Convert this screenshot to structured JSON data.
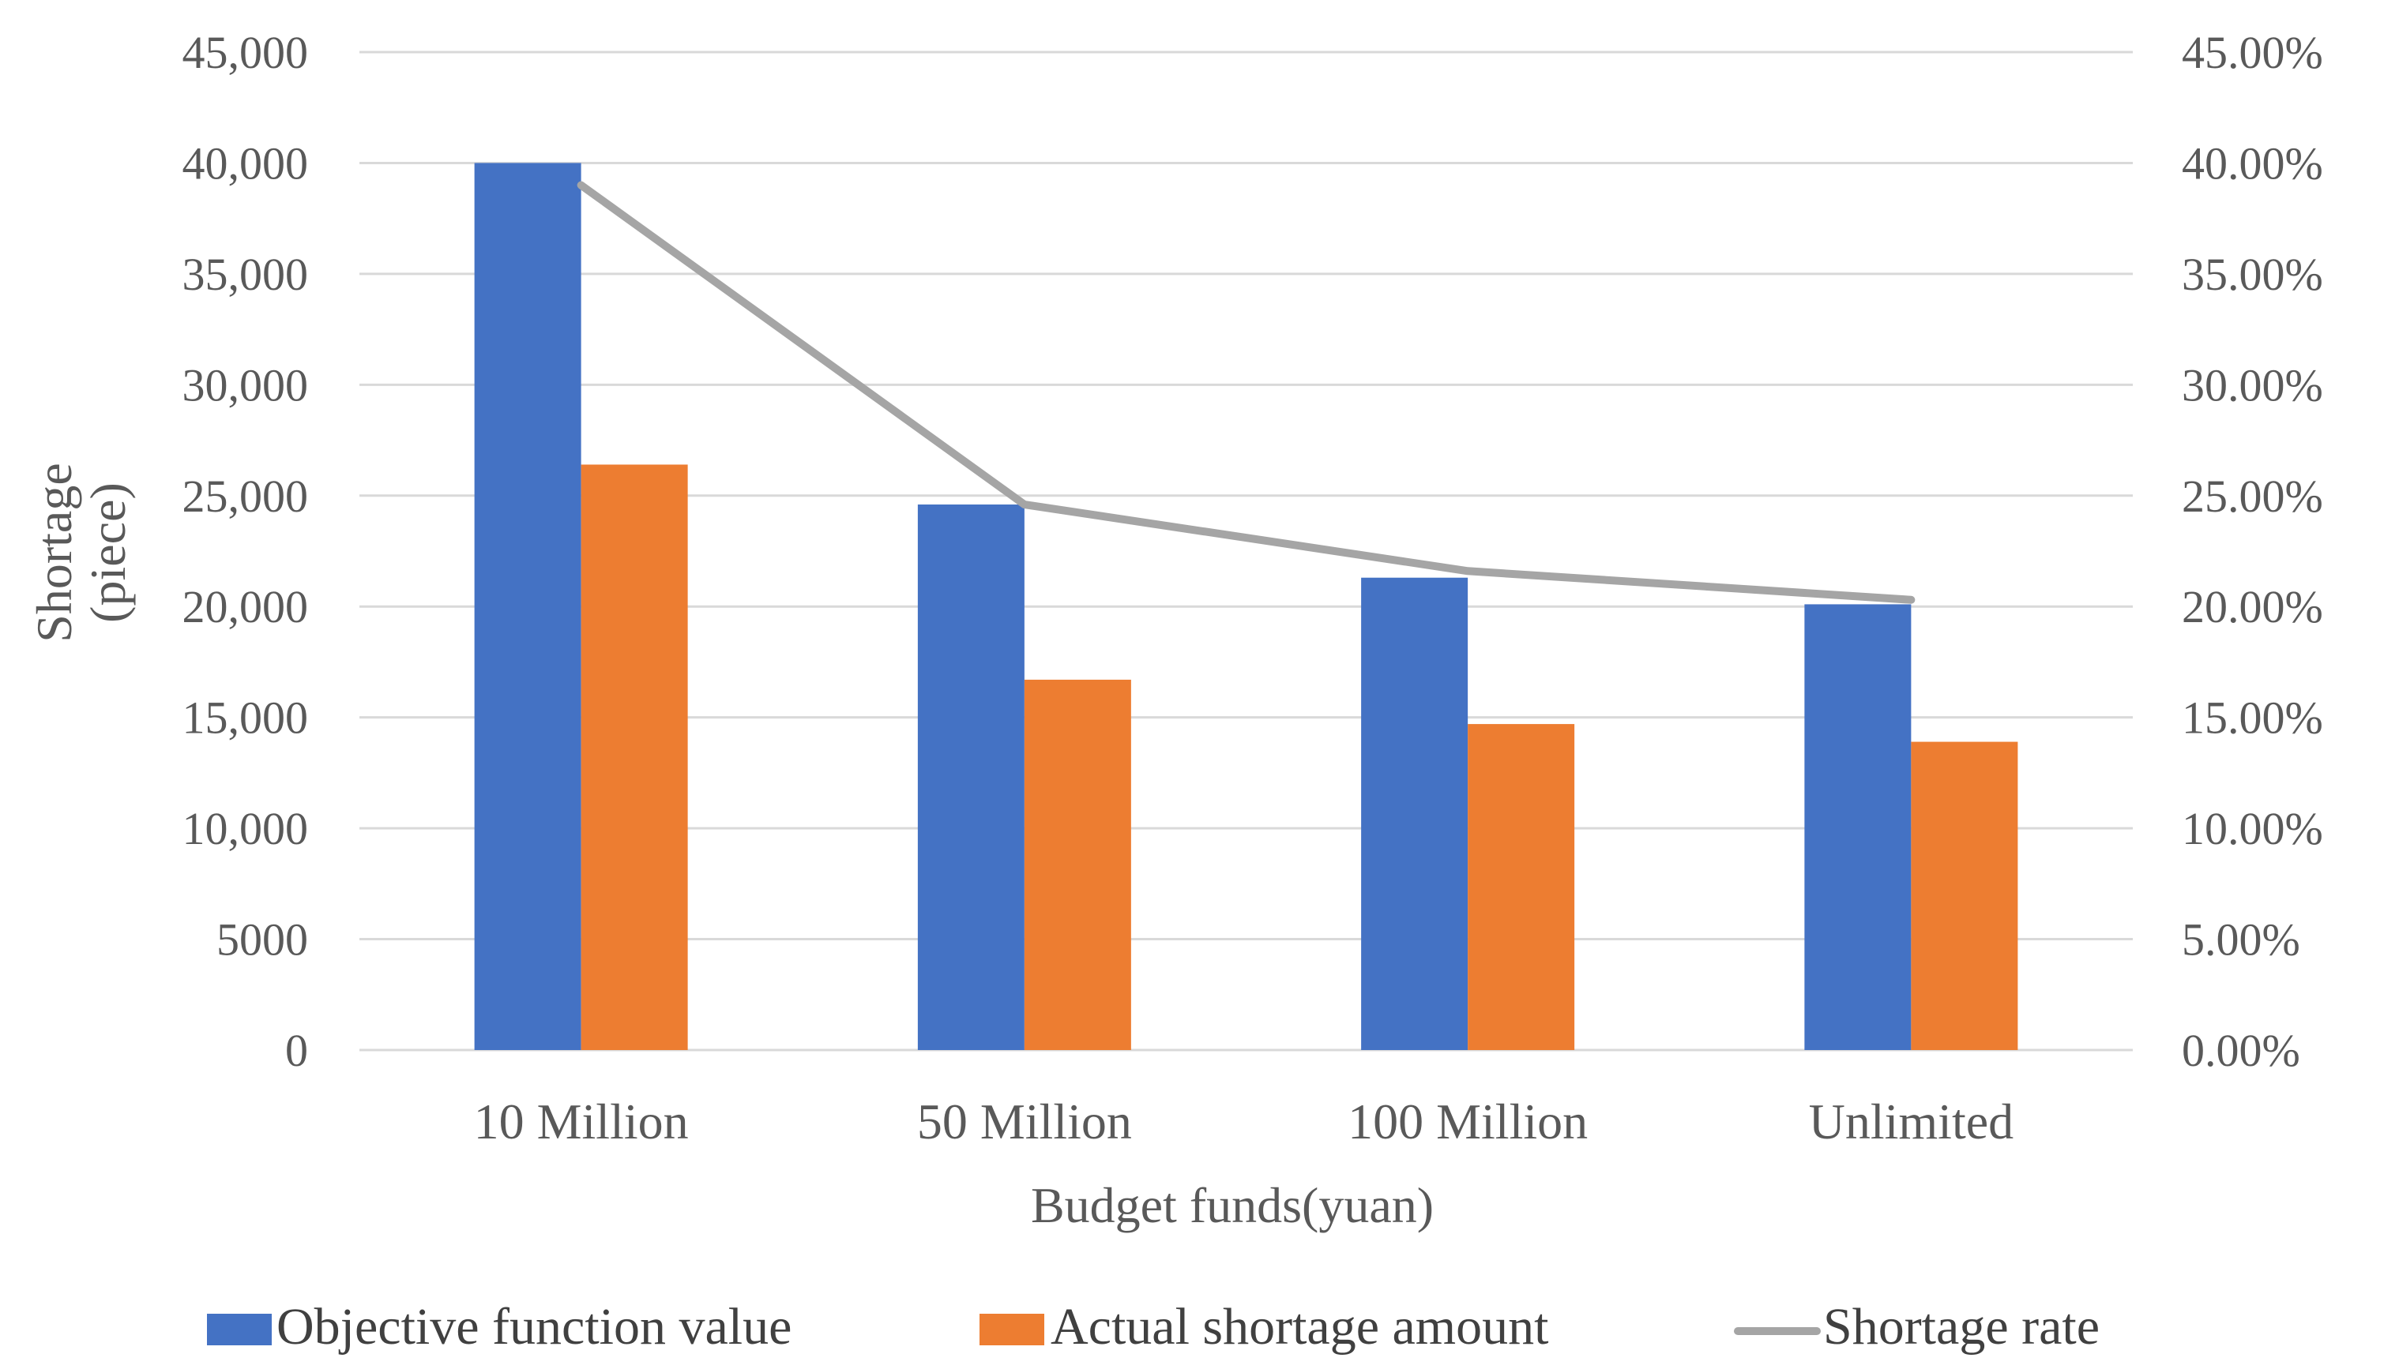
{
  "chart_data": {
    "type": "bar",
    "categories": [
      "10 Million",
      "50 Million",
      "100 Million",
      "Unlimited"
    ],
    "series": [
      {
        "name": "Objective function value",
        "kind": "bar",
        "axis": "left",
        "color": "#4472C4",
        "values": [
          40000,
          24600,
          21300,
          20100
        ]
      },
      {
        "name": "Actual shortage amount",
        "kind": "bar",
        "axis": "left",
        "color": "#ED7D31",
        "values": [
          26400,
          16700,
          14700,
          13900
        ]
      },
      {
        "name": "Shortage rate",
        "kind": "line",
        "axis": "right",
        "color": "#A5A5A5",
        "values": [
          39.0,
          24.6,
          21.6,
          20.3
        ]
      }
    ],
    "xlabel": "Budget funds(yuan)",
    "ylabel_line1": "Shortage",
    "ylabel_line2": "(piece)",
    "ylim": [
      0,
      45000
    ],
    "y2lim": [
      0,
      45
    ],
    "y_ticks": [
      0,
      5000,
      10000,
      15000,
      20000,
      25000,
      30000,
      35000,
      40000,
      45000
    ],
    "y_tick_labels": [
      "0",
      "5000",
      "10,000",
      "15,000",
      "20,000",
      "25,000",
      "30,000",
      "35,000",
      "40,000",
      "45,000"
    ],
    "y2_ticks": [
      0,
      5,
      10,
      15,
      20,
      25,
      30,
      35,
      40,
      45
    ],
    "y2_tick_labels": [
      "0.00%",
      "5.00%",
      "10.00%",
      "15.00%",
      "20.00%",
      "25.00%",
      "30.00%",
      "35.00%",
      "40.00%",
      "45.00%"
    ],
    "grid": true,
    "legend_position": "bottom"
  }
}
